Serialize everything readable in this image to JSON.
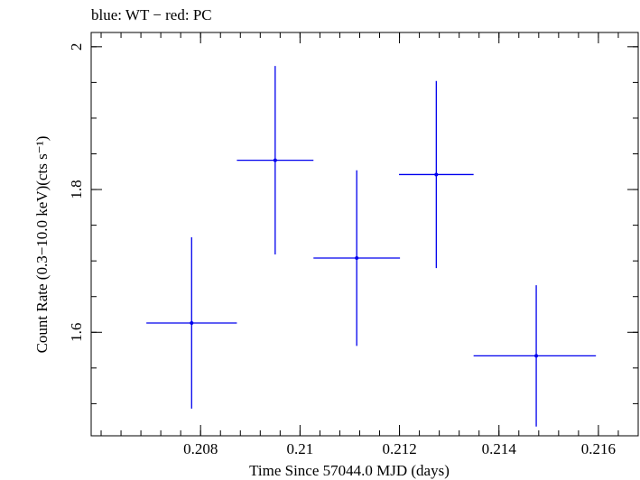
{
  "chart_data": {
    "type": "scatter",
    "title": "blue: WT − red: PC",
    "xlabel": "Time Since 57044.0 MJD (days)",
    "ylabel": "Count Rate (0.3−10.0 keV)(cts s⁻¹)",
    "xlim": [
      0.2058,
      0.2168
    ],
    "ylim": [
      1.455,
      2.02
    ],
    "x_ticks": [
      0.208,
      0.21,
      0.212,
      0.214,
      0.216
    ],
    "x_tick_labels": [
      "0.208",
      "0.21",
      "0.212",
      "0.214",
      "0.216"
    ],
    "y_ticks": [
      1.6,
      1.8,
      2.0
    ],
    "y_tick_labels": [
      "1.6",
      "1.8",
      "2"
    ],
    "grid": false,
    "series": [
      {
        "color": "#0000ee",
        "points": [
          {
            "x": 0.20782,
            "y": 1.613,
            "xerr_low": 0.00091,
            "xerr_high": 0.00091,
            "yerr": 0.12
          },
          {
            "x": 0.2095,
            "y": 1.841,
            "xerr_low": 0.00077,
            "xerr_high": 0.00077,
            "yerr": 0.132
          },
          {
            "x": 0.21114,
            "y": 1.704,
            "xerr_low": 0.00087,
            "xerr_high": 0.00087,
            "yerr": 0.123
          },
          {
            "x": 0.21274,
            "y": 1.821,
            "xerr_low": 0.00075,
            "xerr_high": 0.00075,
            "yerr": 0.131
          },
          {
            "x": 0.21475,
            "y": 1.567,
            "xerr_low": 0.00126,
            "xerr_high": 0.0012,
            "yerr": 0.099
          }
        ]
      }
    ]
  }
}
